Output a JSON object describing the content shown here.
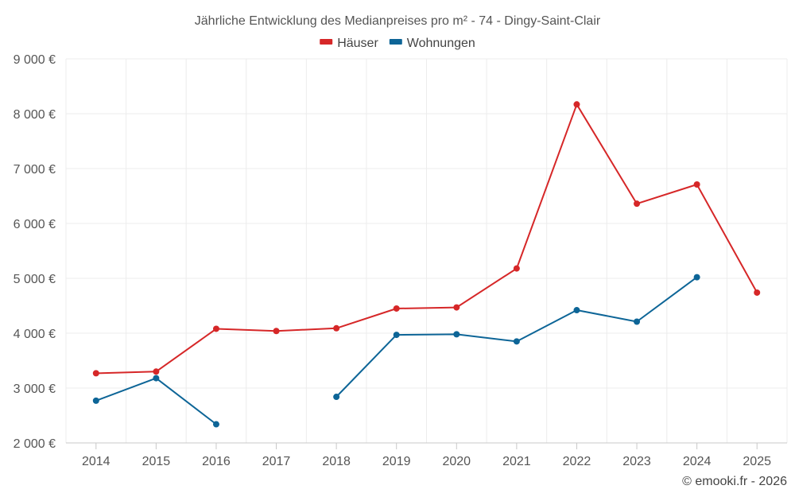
{
  "chart_data": {
    "type": "line",
    "title": "Jährliche Entwicklung des Medianpreises pro m² - 74 - Dingy-Saint-Clair",
    "categories": [
      "2014",
      "2015",
      "2016",
      "2017",
      "2018",
      "2019",
      "2020",
      "2021",
      "2022",
      "2023",
      "2024",
      "2025"
    ],
    "series": [
      {
        "name": "Häuser",
        "color": "#d62728",
        "values": [
          3270,
          3300,
          4080,
          4040,
          4090,
          4450,
          4470,
          5180,
          8170,
          6360,
          6710,
          4740
        ]
      },
      {
        "name": "Wohnungen",
        "color": "#0d6597",
        "values": [
          2770,
          3180,
          2340,
          null,
          2840,
          3970,
          3980,
          3850,
          4420,
          4210,
          5020,
          null
        ]
      }
    ],
    "y_ticks": [
      "2 000 €",
      "3 000 €",
      "4 000 €",
      "5 000 €",
      "6 000 €",
      "7 000 €",
      "8 000 €",
      "9 000 €"
    ],
    "ylim": [
      2000,
      9000
    ],
    "xlabel": "",
    "ylabel": "",
    "legend_position": "top-center",
    "grid": true
  },
  "credit": "© emooki.fr - 2026"
}
